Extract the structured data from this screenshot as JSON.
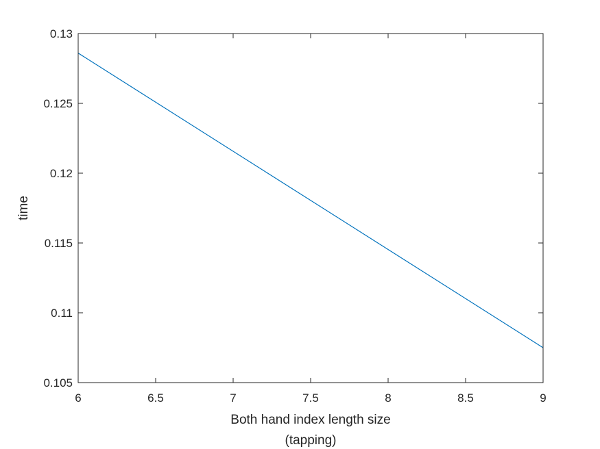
{
  "chart_data": {
    "type": "line",
    "title": "",
    "xlabel_lines": [
      "Both hand index length size",
      "(tapping)"
    ],
    "ylabel": "time",
    "xlim": [
      6,
      9
    ],
    "ylim": [
      0.105,
      0.13
    ],
    "xticks": [
      6,
      6.5,
      7,
      7.5,
      8,
      8.5,
      9
    ],
    "xtick_labels": [
      "6",
      "6.5",
      "7",
      "7.5",
      "8",
      "8.5",
      "9"
    ],
    "yticks": [
      0.105,
      0.11,
      0.115,
      0.12,
      0.125,
      0.13
    ],
    "ytick_labels": [
      "0.105",
      "0.11",
      "0.115",
      "0.12",
      "0.125",
      "0.13"
    ],
    "grid": false,
    "box": true,
    "series": [
      {
        "x": [
          6,
          9
        ],
        "y": [
          0.1286,
          0.1075
        ],
        "color": "#0072BD"
      }
    ]
  }
}
